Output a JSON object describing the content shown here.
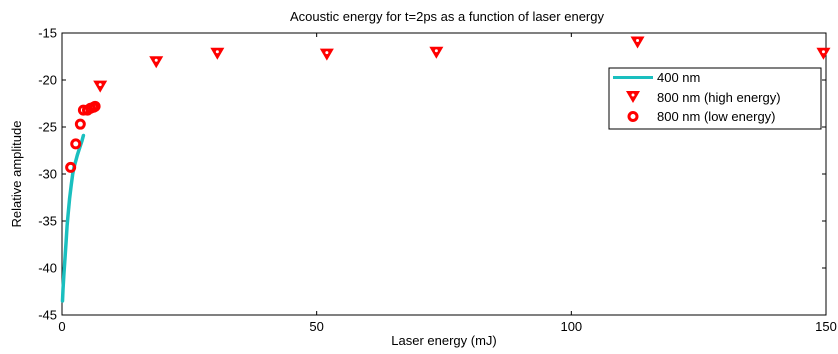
{
  "chart_data": {
    "type": "scatter",
    "title": "Acoustic energy for t=2ps as a function of laser energy",
    "xlabel": "Laser energy (mJ)",
    "ylabel": "Relative amplitude",
    "xlim": [
      0,
      150
    ],
    "ylim": [
      -45,
      -15
    ],
    "xticks": [
      0,
      50,
      100,
      150
    ],
    "yticks": [
      -45,
      -40,
      -35,
      -30,
      -25,
      -20,
      -15
    ],
    "grid": false,
    "legend_position": "top-right",
    "series": [
      {
        "name": "400 nm",
        "kind": "line",
        "color": "#1ABFBF",
        "x": [
          0.1,
          0.2,
          0.4,
          0.6,
          0.8,
          1.0,
          1.2,
          1.5,
          1.8,
          2.1,
          2.4,
          2.7,
          3.0,
          3.3,
          3.6,
          3.9,
          4.2
        ],
        "y": [
          -43.5,
          -42.3,
          -40.5,
          -38.8,
          -37.2,
          -35.5,
          -34.3,
          -32.6,
          -31.2,
          -30.0,
          -29.2,
          -28.6,
          -28.0,
          -27.5,
          -27.0,
          -26.5,
          -25.9
        ]
      },
      {
        "name": "800 nm (high energy)",
        "kind": "marker",
        "marker": "triangle-down",
        "color": "#FF0000",
        "x": [
          7.5,
          18.5,
          30.5,
          52.0,
          73.5,
          113.0,
          149.5
        ],
        "y": [
          -20.6,
          -18.0,
          -17.1,
          -17.2,
          -17.0,
          -15.9,
          -17.1
        ]
      },
      {
        "name": "800 nm (low energy)",
        "kind": "marker",
        "marker": "circle",
        "color": "#FF0000",
        "x": [
          1.7,
          2.7,
          3.6,
          4.2,
          5.0,
          5.6,
          6.2,
          6.5
        ],
        "y": [
          -29.3,
          -26.8,
          -24.7,
          -23.2,
          -23.2,
          -23.0,
          -22.9,
          -22.8
        ]
      }
    ]
  }
}
